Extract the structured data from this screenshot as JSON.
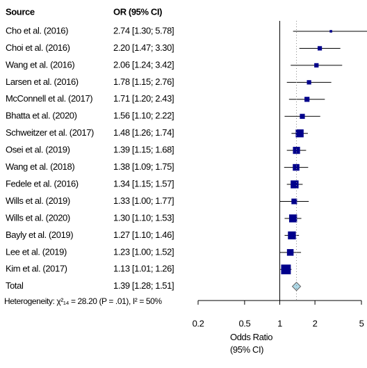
{
  "chart_data": {
    "type": "forest",
    "columns": [
      "Source",
      "OR (95% CI)"
    ],
    "categories": [
      "Cho et al. (2016)",
      "Choi et al. (2016)",
      "Wang et al. (2016)",
      "Larsen et al. (2016)",
      "McConnell et al. (2017)",
      "Bhatta et al. (2020)",
      "Schweitzer et al. (2017)",
      "Osei et al. (2019)",
      "Wang et al. (2018)",
      "Fedele et al. (2016)",
      "Wills et al. (2019)",
      "Wills et al. (2020)",
      "Bayly et al. (2019)",
      "Lee et al. (2019)",
      "Kim et al. (2017)"
    ],
    "values": [
      2.74,
      2.2,
      2.06,
      1.78,
      1.71,
      1.56,
      1.48,
      1.39,
      1.38,
      1.34,
      1.33,
      1.3,
      1.27,
      1.23,
      1.13
    ],
    "lower": [
      1.3,
      1.47,
      1.24,
      1.15,
      1.2,
      1.1,
      1.26,
      1.15,
      1.09,
      1.15,
      1.0,
      1.1,
      1.1,
      1.0,
      1.01
    ],
    "upper": [
      5.78,
      3.3,
      3.42,
      2.76,
      2.43,
      2.22,
      1.74,
      1.68,
      1.75,
      1.57,
      1.77,
      1.53,
      1.46,
      1.52,
      1.26
    ],
    "value_labels": [
      "2.74 [1.30; 5.78]",
      "2.20 [1.47; 3.30]",
      "2.06 [1.24; 3.42]",
      "1.78 [1.15; 2.76]",
      "1.71 [1.20; 2.43]",
      "1.56 [1.10; 2.22]",
      "1.48 [1.26; 1.74]",
      "1.39 [1.15; 1.68]",
      "1.38 [1.09; 1.75]",
      "1.34 [1.15; 1.57]",
      "1.33 [1.00; 1.77]",
      "1.30 [1.10; 1.53]",
      "1.27 [1.10; 1.46]",
      "1.23 [1.00; 1.52]",
      "1.13 [1.01; 1.26]"
    ],
    "weights": [
      1,
      3,
      3,
      3,
      4,
      4,
      10,
      8,
      7,
      10,
      5,
      10,
      10,
      7,
      15
    ],
    "total": {
      "label": "Total",
      "value": 1.39,
      "lower": 1.28,
      "upper": 1.51,
      "value_label": "1.39 [1.28; 1.51]"
    },
    "heterogeneity": "Heterogeneity: χ²₁₄ = 28.20 (P = .01), I² = 50%",
    "xlabel": "Odds Ratio (95% CI)",
    "xscale": "log",
    "xlim": [
      0.2,
      5
    ],
    "xticks": [
      0.2,
      0.5,
      1,
      2,
      5
    ],
    "color": "#00008b",
    "diamond_color": "#add8e6"
  }
}
